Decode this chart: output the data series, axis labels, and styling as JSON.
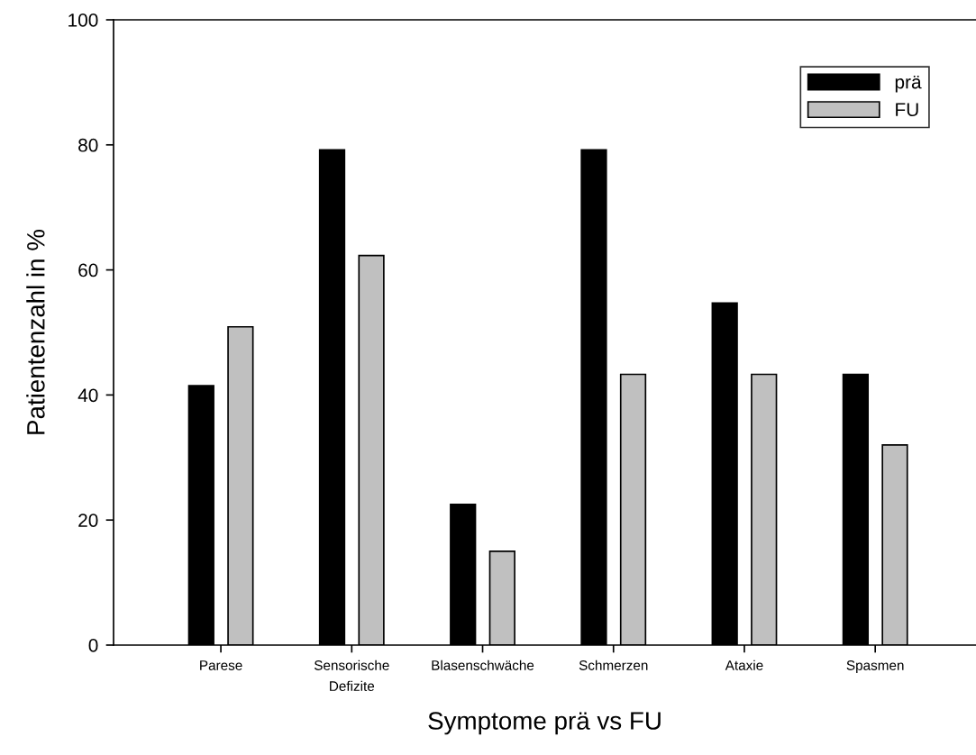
{
  "chart_data": {
    "type": "bar",
    "xlabel": "Symptome prä vs FU",
    "ylabel": "Patientenzahl in %",
    "categories": [
      "Parese",
      "Sensorische\nDefizite",
      "Blasenschwäche",
      "Schmerzen",
      "Ataxie",
      "Spasmen"
    ],
    "series": [
      {
        "name": "prä",
        "color": "#000000",
        "values": [
          41.5,
          79.2,
          22.5,
          79.2,
          54.7,
          43.3
        ]
      },
      {
        "name": "FU",
        "color": "#c0c0c0",
        "values": [
          50.9,
          62.3,
          15.0,
          43.3,
          43.3,
          32.0
        ]
      }
    ],
    "ylim": [
      0,
      100
    ],
    "yticks": [
      0,
      20,
      40,
      60,
      80,
      100
    ],
    "grid": false,
    "legend": "top right"
  }
}
